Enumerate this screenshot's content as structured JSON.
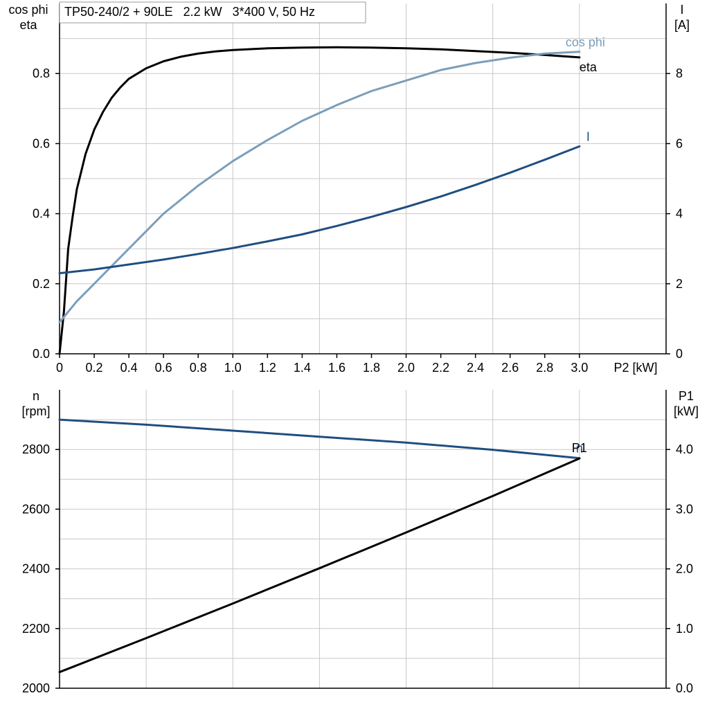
{
  "title": "TP50-240/2 + 90LE   2.2 kW   3*400 V, 50 Hz",
  "colors": {
    "eta": "#000000",
    "cos_phi": "#7a9ebb",
    "current": "#1f4e80",
    "speed": "#1f4e80",
    "p1": "#000000",
    "grid": "#c8c8c8",
    "axis": "#000000"
  },
  "chart_data": [
    {
      "type": "line",
      "xlabel": "P2 [kW]",
      "ylabel_left": [
        "cos phi",
        "eta"
      ],
      "ylabel_right": [
        "I",
        "[A]"
      ],
      "xlim": [
        0,
        3.5
      ],
      "ylim_left": [
        0,
        1.0
      ],
      "ylim_right": [
        0,
        10
      ],
      "x_ticks": [
        "0",
        "0.2",
        "0.4",
        "0.6",
        "0.8",
        "1.0",
        "1.2",
        "1.4",
        "1.6",
        "1.8",
        "2.0",
        "2.2",
        "2.4",
        "2.6",
        "2.8",
        "3.0"
      ],
      "y_ticks_left": [
        "0.0",
        "0.2",
        "0.4",
        "0.6",
        "0.8"
      ],
      "y_ticks_right": [
        "0",
        "2",
        "4",
        "6",
        "8"
      ],
      "grid": true,
      "series": [
        {
          "name": "eta",
          "axis": "left",
          "x": [
            0,
            0.025,
            0.05,
            0.075,
            0.1,
            0.125,
            0.15,
            0.2,
            0.25,
            0.3,
            0.35,
            0.4,
            0.5,
            0.6,
            0.7,
            0.8,
            0.9,
            1.0,
            1.2,
            1.4,
            1.6,
            1.8,
            2.0,
            2.2,
            2.4,
            2.6,
            2.8,
            3.0
          ],
          "y": [
            0.0,
            0.12,
            0.3,
            0.39,
            0.47,
            0.52,
            0.57,
            0.64,
            0.69,
            0.73,
            0.76,
            0.785,
            0.815,
            0.835,
            0.848,
            0.857,
            0.863,
            0.867,
            0.872,
            0.874,
            0.875,
            0.874,
            0.872,
            0.869,
            0.864,
            0.859,
            0.853,
            0.846
          ]
        },
        {
          "name": "cos phi",
          "axis": "left",
          "x": [
            0,
            0.1,
            0.2,
            0.3,
            0.4,
            0.5,
            0.6,
            0.8,
            1.0,
            1.2,
            1.4,
            1.6,
            1.8,
            2.0,
            2.2,
            2.4,
            2.6,
            2.8,
            3.0
          ],
          "y": [
            0.09,
            0.15,
            0.2,
            0.25,
            0.3,
            0.35,
            0.4,
            0.48,
            0.55,
            0.61,
            0.665,
            0.71,
            0.75,
            0.78,
            0.81,
            0.83,
            0.845,
            0.857,
            0.862
          ]
        },
        {
          "name": "I",
          "axis": "right",
          "x": [
            0,
            0.2,
            0.4,
            0.6,
            0.8,
            1.0,
            1.2,
            1.4,
            1.6,
            1.8,
            2.0,
            2.2,
            2.4,
            2.6,
            2.8,
            3.0
          ],
          "y": [
            2.3,
            2.41,
            2.55,
            2.69,
            2.85,
            3.02,
            3.21,
            3.41,
            3.65,
            3.91,
            4.19,
            4.49,
            4.82,
            5.17,
            5.54,
            5.92
          ]
        }
      ]
    },
    {
      "type": "line",
      "ylabel_left": [
        "n",
        "[rpm]"
      ],
      "ylabel_right": [
        "P1",
        "[kW]"
      ],
      "xlim": [
        0,
        3.5
      ],
      "ylim_left": [
        2000,
        3000
      ],
      "ylim_right": [
        0,
        5.0
      ],
      "y_ticks_left": [
        "2000",
        "2200",
        "2400",
        "2600",
        "2800"
      ],
      "y_ticks_right": [
        "0.0",
        "1.0",
        "2.0",
        "3.0",
        "4.0"
      ],
      "grid": true,
      "series": [
        {
          "name": "n",
          "axis": "left",
          "x": [
            0,
            0.5,
            1.0,
            1.5,
            2.0,
            2.5,
            3.0
          ],
          "y": [
            2900,
            2883,
            2863,
            2843,
            2823,
            2799,
            2771
          ]
        },
        {
          "name": "P1",
          "axis": "right",
          "x": [
            0,
            0.5,
            1.0,
            1.5,
            2.0,
            2.5,
            3.0
          ],
          "y": [
            0.27,
            0.84,
            1.42,
            2.01,
            2.61,
            3.22,
            3.85
          ]
        }
      ]
    }
  ]
}
